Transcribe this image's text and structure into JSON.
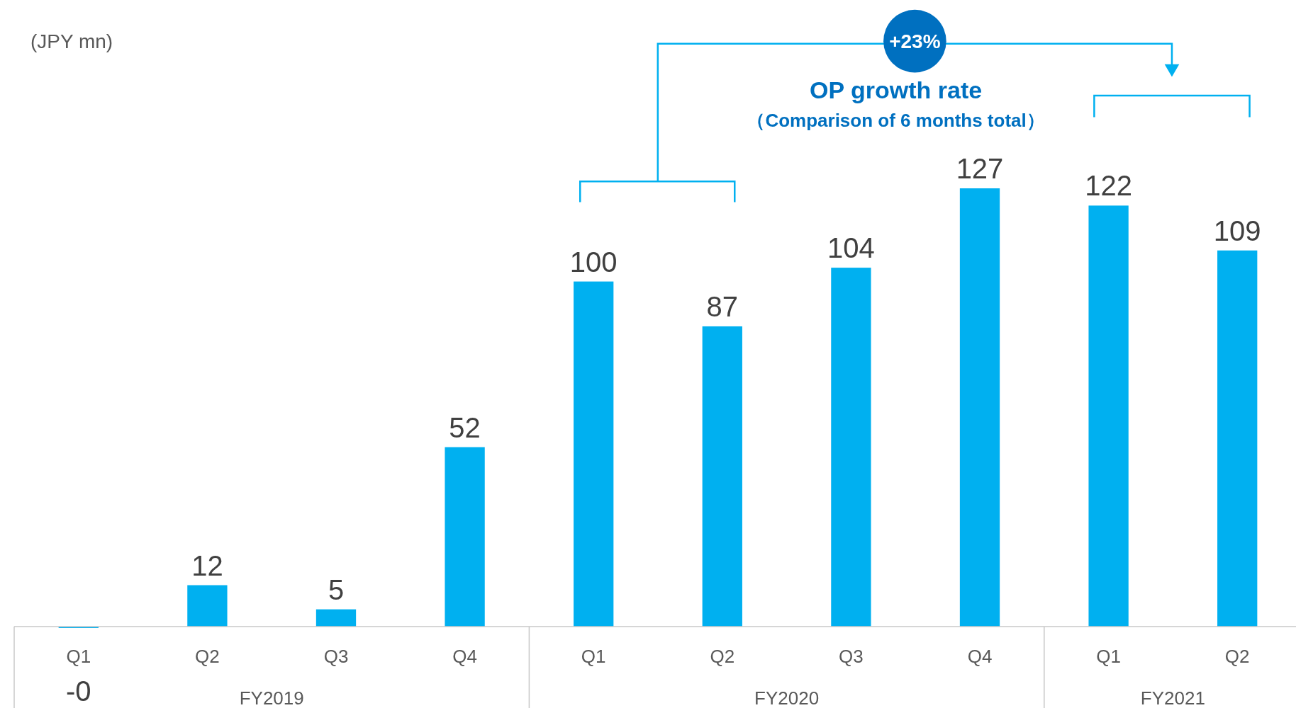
{
  "chart_data": {
    "type": "bar",
    "categories": [
      "Q1",
      "Q2",
      "Q3",
      "Q4",
      "Q1",
      "Q2",
      "Q3",
      "Q4",
      "Q1",
      "Q2"
    ],
    "values": [
      -0.4,
      12,
      5,
      52,
      100,
      87,
      104,
      127,
      122,
      109
    ],
    "value_labels": [
      "-0",
      "12",
      "5",
      "52",
      "100",
      "87",
      "104",
      "127",
      "122",
      "109"
    ],
    "color": "#00b0f0",
    "annotations": [
      "+23%",
      "OP growth rate",
      "（Comparison of 6 months total）",
      "FY2019",
      "FY2020",
      "FY2021",
      "(JPY mn)"
    ]
  }
}
